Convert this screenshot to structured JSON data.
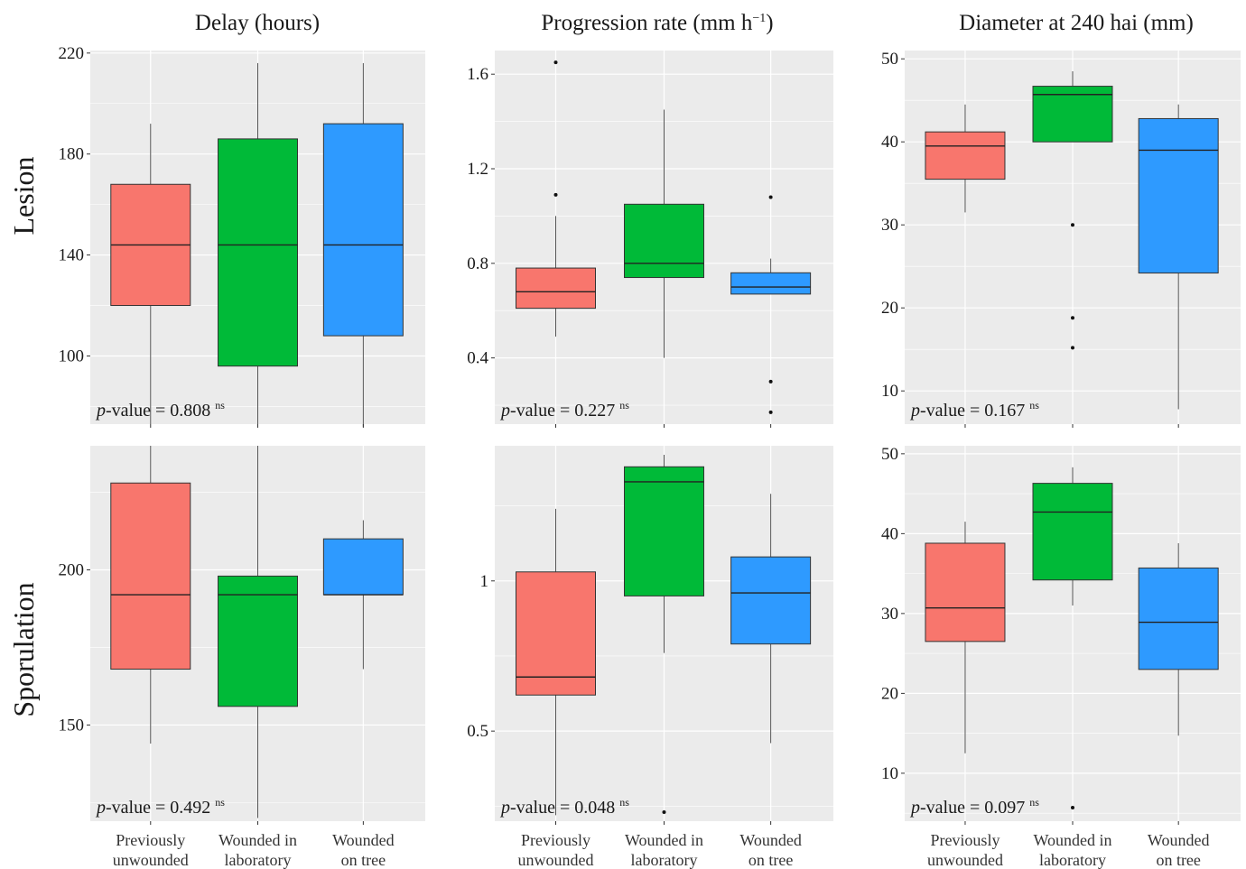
{
  "column_titles": [
    "Delay (hours)",
    "Progression rate (mm h",
    "Diameter at 240 hai (mm)"
  ],
  "column_title_superscript": "−1",
  "column_title_suffix": ")",
  "row_labels": [
    "Lesion",
    "Sporulation"
  ],
  "categories": [
    [
      "Previously",
      "unwounded"
    ],
    [
      "Wounded in",
      "laboratory"
    ],
    [
      "Wounded",
      "on tree"
    ]
  ],
  "colors": {
    "series": [
      "#F8766D",
      "#00BA38",
      "#2E9AFF"
    ],
    "panel_bg": "#EBEBEB",
    "grid": "#FFFFFF"
  },
  "chart_data": [
    {
      "type": "boxplot",
      "row": "Lesion",
      "column": "Delay (hours)",
      "ylim": [
        73,
        221
      ],
      "yticks": [
        100,
        140,
        180,
        220
      ],
      "p_value": "0.808",
      "significance": "ns",
      "boxes": [
        {
          "category": "Previously unwounded",
          "whisker_low": 73,
          "q1": 120,
          "median": 144,
          "q3": 168,
          "whisker_high": 192,
          "outliers": []
        },
        {
          "category": "Wounded in laboratory",
          "whisker_low": 72,
          "q1": 96,
          "median": 144,
          "q3": 186,
          "whisker_high": 216,
          "outliers": []
        },
        {
          "category": "Wounded on tree",
          "whisker_low": 72,
          "q1": 108,
          "median": 144,
          "q3": 192,
          "whisker_high": 216,
          "outliers": []
        }
      ]
    },
    {
      "type": "boxplot",
      "row": "Lesion",
      "column": "Progression rate (mm h-1)",
      "ylim": [
        0.12,
        1.7
      ],
      "yticks": [
        0.4,
        0.8,
        1.2,
        1.6
      ],
      "p_value": "0.227",
      "significance": "ns",
      "boxes": [
        {
          "category": "Previously unwounded",
          "whisker_low": 0.49,
          "q1": 0.61,
          "median": 0.68,
          "q3": 0.78,
          "whisker_high": 1.0,
          "outliers": [
            1.09,
            1.65
          ]
        },
        {
          "category": "Wounded in laboratory",
          "whisker_low": 0.4,
          "q1": 0.74,
          "median": 0.8,
          "q3": 1.05,
          "whisker_high": 1.45,
          "outliers": []
        },
        {
          "category": "Wounded on tree",
          "whisker_low": 0.67,
          "q1": 0.67,
          "median": 0.7,
          "q3": 0.76,
          "whisker_high": 0.82,
          "outliers": [
            1.08,
            0.3,
            0.17
          ]
        }
      ]
    },
    {
      "type": "boxplot",
      "row": "Lesion",
      "column": "Diameter at 240 hai (mm)",
      "ylim": [
        6,
        51
      ],
      "yticks": [
        10,
        20,
        30,
        40,
        50
      ],
      "p_value": "0.167",
      "significance": "ns",
      "boxes": [
        {
          "category": "Previously unwounded",
          "whisker_low": 31.5,
          "q1": 35.5,
          "median": 39.5,
          "q3": 41.2,
          "whisker_high": 44.5,
          "outliers": []
        },
        {
          "category": "Wounded in laboratory",
          "whisker_low": 40.0,
          "q1": 40.0,
          "median": 45.7,
          "q3": 46.7,
          "whisker_high": 48.5,
          "outliers": [
            30.0,
            18.8,
            15.2
          ]
        },
        {
          "category": "Wounded on tree",
          "whisker_low": 7.8,
          "q1": 24.2,
          "median": 39.0,
          "q3": 42.8,
          "whisker_high": 44.5,
          "outliers": []
        }
      ]
    },
    {
      "type": "boxplot",
      "row": "Sporulation",
      "column": "Delay (hours)",
      "ylim": [
        119,
        240
      ],
      "yticks": [
        150,
        200
      ],
      "p_value": "0.492",
      "significance": "ns",
      "boxes": [
        {
          "category": "Previously unwounded",
          "whisker_low": 144,
          "q1": 168,
          "median": 192,
          "q3": 228,
          "whisker_high": 240,
          "outliers": []
        },
        {
          "category": "Wounded in laboratory",
          "whisker_low": 120,
          "q1": 156,
          "median": 192,
          "q3": 198,
          "whisker_high": 240,
          "outliers": []
        },
        {
          "category": "Wounded on tree",
          "whisker_low": 168,
          "q1": 192,
          "median": 192,
          "q3": 210,
          "whisker_high": 216,
          "outliers": []
        }
      ]
    },
    {
      "type": "boxplot",
      "row": "Sporulation",
      "column": "Progression rate (mm h-1)",
      "ylim": [
        0.2,
        1.45
      ],
      "yticks": [
        0.5,
        1.0
      ],
      "p_value": "0.048",
      "significance": "ns",
      "boxes": [
        {
          "category": "Previously unwounded",
          "whisker_low": 0.22,
          "q1": 0.62,
          "median": 0.68,
          "q3": 1.03,
          "whisker_high": 1.24,
          "outliers": []
        },
        {
          "category": "Wounded in laboratory",
          "whisker_low": 0.76,
          "q1": 0.95,
          "median": 1.33,
          "q3": 1.38,
          "whisker_high": 1.42,
          "outliers": [
            0.23
          ]
        },
        {
          "category": "Wounded on tree",
          "whisker_low": 0.46,
          "q1": 0.79,
          "median": 0.96,
          "q3": 1.08,
          "whisker_high": 1.29,
          "outliers": []
        }
      ]
    },
    {
      "type": "boxplot",
      "row": "Sporulation",
      "column": "Diameter at 240 hai (mm)",
      "ylim": [
        4,
        51
      ],
      "yticks": [
        10,
        20,
        30,
        40,
        50
      ],
      "p_value": "0.097",
      "significance": "ns",
      "boxes": [
        {
          "category": "Previously unwounded",
          "whisker_low": 12.5,
          "q1": 26.5,
          "median": 30.7,
          "q3": 38.8,
          "whisker_high": 41.5,
          "outliers": []
        },
        {
          "category": "Wounded in laboratory",
          "whisker_low": 31.0,
          "q1": 34.2,
          "median": 42.7,
          "q3": 46.3,
          "whisker_high": 48.3,
          "outliers": [
            5.7
          ]
        },
        {
          "category": "Wounded on tree",
          "whisker_low": 14.7,
          "q1": 23.0,
          "median": 28.9,
          "q3": 35.7,
          "whisker_high": 38.8,
          "outliers": []
        }
      ]
    }
  ]
}
